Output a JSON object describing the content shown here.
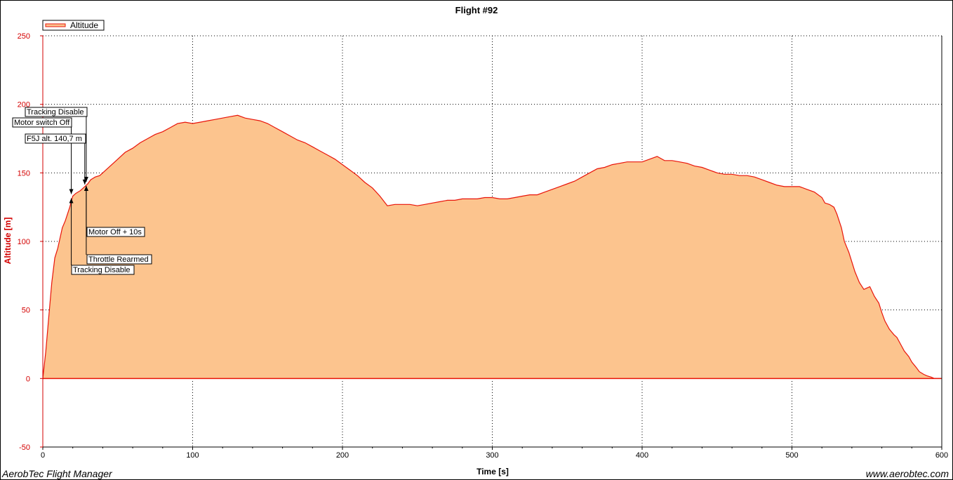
{
  "chart_data": {
    "type": "area",
    "title": "Flight #92",
    "xlabel": "Time [s]",
    "ylabel": "Altitude [m]",
    "xlim": [
      0,
      600
    ],
    "ylim": [
      -50,
      250
    ],
    "x_ticks": [
      "0",
      "100",
      "200",
      "300",
      "400",
      "500",
      "600"
    ],
    "y_ticks": [
      "-50",
      "0",
      "50",
      "100",
      "150",
      "200",
      "250"
    ],
    "grid": true,
    "legend_position": "top-left",
    "series": [
      {
        "name": "Altitude",
        "color": "#e8140a",
        "fill": "#fcc48e",
        "x": [
          0,
          2,
          4,
          6,
          8,
          10,
          13,
          15,
          18,
          20,
          22,
          25,
          28,
          30,
          32,
          35,
          38,
          40,
          45,
          50,
          55,
          60,
          65,
          70,
          75,
          80,
          85,
          90,
          95,
          100,
          105,
          110,
          115,
          120,
          125,
          130,
          135,
          140,
          145,
          150,
          155,
          160,
          165,
          170,
          175,
          180,
          185,
          190,
          195,
          200,
          205,
          210,
          215,
          220,
          225,
          230,
          235,
          240,
          245,
          250,
          255,
          260,
          265,
          270,
          275,
          280,
          285,
          290,
          295,
          300,
          305,
          310,
          315,
          320,
          325,
          330,
          335,
          340,
          345,
          350,
          355,
          360,
          365,
          370,
          375,
          380,
          385,
          390,
          395,
          400,
          405,
          410,
          415,
          420,
          425,
          430,
          435,
          440,
          445,
          450,
          455,
          460,
          465,
          470,
          475,
          480,
          485,
          490,
          495,
          500,
          505,
          510,
          515,
          520,
          522,
          525,
          528,
          530,
          533,
          535,
          538,
          540,
          542,
          545,
          548,
          550,
          552,
          555,
          558,
          560,
          562,
          565,
          568,
          570,
          573,
          575,
          578,
          580,
          583,
          585,
          588,
          590,
          593,
          595,
          598,
          600
        ],
        "values": [
          0,
          20,
          45,
          70,
          88,
          95,
          110,
          115,
          125,
          133,
          135,
          137,
          140,
          142,
          145,
          147,
          148,
          150,
          155,
          160,
          165,
          168,
          172,
          175,
          178,
          180,
          183,
          186,
          187,
          186,
          187,
          188,
          189,
          190,
          191,
          192,
          190,
          189,
          188,
          186,
          183,
          180,
          177,
          174,
          172,
          169,
          166,
          163,
          160,
          156,
          152,
          148,
          143,
          139,
          133,
          126,
          127,
          127,
          127,
          126,
          127,
          128,
          129,
          130,
          130,
          131,
          131,
          131,
          132,
          132,
          131,
          131,
          132,
          133,
          134,
          134,
          136,
          138,
          140,
          142,
          144,
          147,
          150,
          153,
          154,
          156,
          157,
          158,
          158,
          158,
          160,
          162,
          159,
          159,
          158,
          157,
          155,
          154,
          152,
          150,
          149,
          149,
          148,
          148,
          147,
          145,
          143,
          141,
          140,
          140,
          140,
          138,
          136,
          132,
          128,
          127,
          125,
          120,
          110,
          100,
          92,
          85,
          78,
          70,
          65,
          66,
          67,
          60,
          55,
          48,
          42,
          36,
          32,
          30,
          24,
          20,
          16,
          12,
          8,
          5,
          3,
          2,
          1,
          0,
          0,
          0
        ]
      }
    ],
    "annotations": [
      {
        "label": "Tracking Disable",
        "x": 29
      },
      {
        "label": "Motor switch Off",
        "x": 19
      },
      {
        "label": "F5J alt. 140,7 m",
        "x": 28
      },
      {
        "label": "Motor Off + 10s",
        "x": 29
      },
      {
        "label": "Throttle Rearmed",
        "x": 29
      },
      {
        "label": "Tracking Disable",
        "x": 19
      }
    ]
  },
  "footer": {
    "left": "AerobTec Flight Manager",
    "right": "www.aerobtec.com"
  }
}
